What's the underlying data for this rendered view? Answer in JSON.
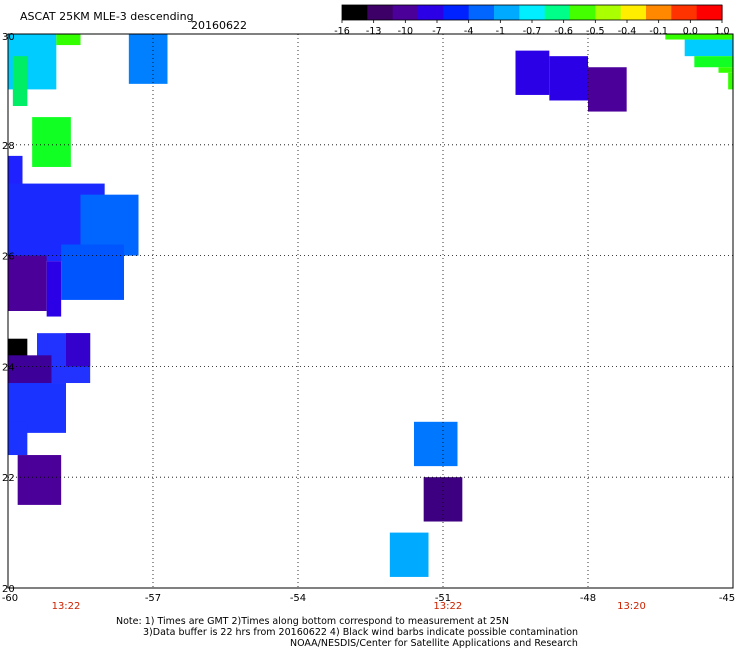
{
  "title": "ASCAT 25KM MLE-3 descending",
  "date": "20160622",
  "colorbar": {
    "labels": [
      "-16",
      "-13",
      "-10",
      "-7",
      "-4",
      "-1",
      "-0.7",
      "-0.6",
      "-0.5",
      "-0.4",
      "-0.1",
      "0.0",
      "1.0"
    ],
    "colors": [
      "#000000",
      "#3d0066",
      "#4b0099",
      "#2b00e6",
      "#0022ff",
      "#0066ff",
      "#00aaff",
      "#00eeff",
      "#00ff88",
      "#44ff00",
      "#aaff00",
      "#ffee00",
      "#ff8800",
      "#ff3300",
      "#ff0000"
    ]
  },
  "axes": {
    "x_ticks": [
      "-60",
      "-57",
      "-54",
      "-51",
      "-48",
      "-45"
    ],
    "y_ticks": [
      "30",
      "28",
      "26",
      "24",
      "22",
      "20"
    ],
    "lon_range": [
      -60,
      -45
    ],
    "lat_range": [
      20,
      30
    ],
    "grid": "dotted"
  },
  "time_labels": [
    {
      "text": "13:22",
      "lon": -58.8
    },
    {
      "text": "13:22",
      "lon": -50.9
    },
    {
      "text": "13:20",
      "lon": -47.1
    }
  ],
  "notes": [
    "Note: 1) Times are GMT 2)Times along bottom correspond to measurement at 25N",
    "3)Data buffer is 22 hrs from 20160622 4) Black wind barbs indicate possible contamination",
    "NOAA/NESDIS/Center for Satellite Applications and Research"
  ],
  "cells": [
    {
      "lon0": -60.0,
      "lon1": -59.0,
      "lat0": 29.0,
      "lat1": 30.0,
      "color": "#00ccff"
    },
    {
      "lon0": -59.9,
      "lon1": -59.6,
      "lat0": 28.7,
      "lat1": 29.6,
      "color": "#00ee66"
    },
    {
      "lon0": -59.0,
      "lon1": -58.5,
      "lat0": 29.8,
      "lat1": 30.0,
      "color": "#33ff00"
    },
    {
      "lon0": -57.5,
      "lon1": -56.7,
      "lat0": 29.1,
      "lat1": 30.0,
      "color": "#0080ff"
    },
    {
      "lon0": -59.5,
      "lon1": -58.7,
      "lat0": 27.6,
      "lat1": 28.5,
      "color": "#11ff22"
    },
    {
      "lon0": -60.0,
      "lon1": -59.7,
      "lat0": 26.9,
      "lat1": 27.8,
      "color": "#1f22ff"
    },
    {
      "lon0": -60.0,
      "lon1": -58.0,
      "lat0": 25.9,
      "lat1": 27.3,
      "color": "#1a2aff"
    },
    {
      "lon0": -58.5,
      "lon1": -57.3,
      "lat0": 26.0,
      "lat1": 27.1,
      "color": "#0066ff"
    },
    {
      "lon0": -58.9,
      "lon1": -57.6,
      "lat0": 25.2,
      "lat1": 26.2,
      "color": "#0055ff"
    },
    {
      "lon0": -60.0,
      "lon1": -59.2,
      "lat0": 25.0,
      "lat1": 26.0,
      "color": "#4b0099"
    },
    {
      "lon0": -59.2,
      "lon1": -58.9,
      "lat0": 24.9,
      "lat1": 25.9,
      "color": "#2b00e6"
    },
    {
      "lon0": -59.4,
      "lon1": -58.3,
      "lat0": 23.7,
      "lat1": 24.6,
      "color": "#2233ff"
    },
    {
      "lon0": -58.8,
      "lon1": -58.3,
      "lat0": 24.0,
      "lat1": 24.6,
      "color": "#3300cc"
    },
    {
      "lon0": -60.0,
      "lon1": -59.6,
      "lat0": 24.0,
      "lat1": 24.5,
      "color": "#000000"
    },
    {
      "lon0": -60.0,
      "lon1": -59.1,
      "lat0": 23.3,
      "lat1": 24.2,
      "color": "#3d0099"
    },
    {
      "lon0": -60.0,
      "lon1": -58.8,
      "lat0": 22.8,
      "lat1": 23.7,
      "color": "#1a33ff"
    },
    {
      "lon0": -60.0,
      "lon1": -59.6,
      "lat0": 22.4,
      "lat1": 23.0,
      "color": "#1a33ff"
    },
    {
      "lon0": -59.8,
      "lon1": -58.9,
      "lat0": 21.5,
      "lat1": 22.4,
      "color": "#4b0099"
    },
    {
      "lon0": -51.6,
      "lon1": -50.7,
      "lat0": 22.2,
      "lat1": 23.0,
      "color": "#0077ff"
    },
    {
      "lon0": -51.4,
      "lon1": -50.6,
      "lat0": 21.2,
      "lat1": 22.0,
      "color": "#3d0080"
    },
    {
      "lon0": -52.1,
      "lon1": -51.3,
      "lat0": 20.2,
      "lat1": 21.0,
      "color": "#00aaff"
    },
    {
      "lon0": -49.5,
      "lon1": -48.8,
      "lat0": 28.9,
      "lat1": 29.7,
      "color": "#2b00e6"
    },
    {
      "lon0": -48.8,
      "lon1": -48.0,
      "lat0": 28.8,
      "lat1": 29.6,
      "color": "#2b00e6"
    },
    {
      "lon0": -48.0,
      "lon1": -47.2,
      "lat0": 28.6,
      "lat1": 29.4,
      "color": "#4b0099"
    },
    {
      "lon0": -46.4,
      "lon1": -45.0,
      "lat0": 29.9,
      "lat1": 30.0,
      "color": "#33ff00"
    },
    {
      "lon0": -46.0,
      "lon1": -45.0,
      "lat0": 29.6,
      "lat1": 29.9,
      "color": "#00ccff"
    },
    {
      "lon0": -45.8,
      "lon1": -45.0,
      "lat0": 29.4,
      "lat1": 29.6,
      "color": "#11ff22"
    },
    {
      "lon0": -45.3,
      "lon1": -45.0,
      "lat0": 29.3,
      "lat1": 29.4,
      "color": "#33ff00"
    },
    {
      "lon0": -45.1,
      "lon1": -45.0,
      "lat0": 29.0,
      "lat1": 29.3,
      "color": "#33ff00"
    }
  ]
}
